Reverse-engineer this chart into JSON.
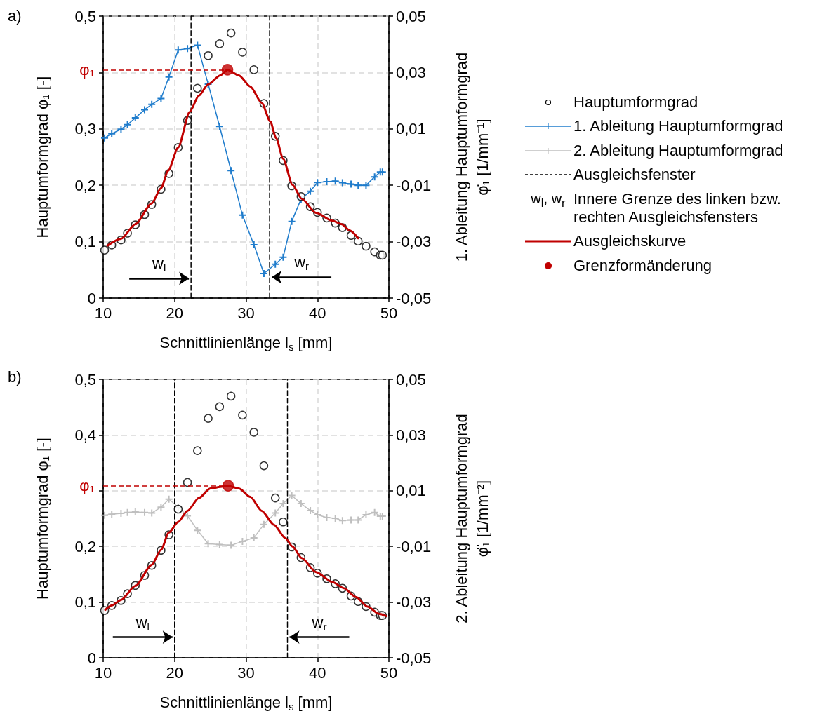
{
  "chart_data": [
    {
      "type": "line",
      "title": "a)",
      "xlabel": "Schnittlinienlänge l$_{s}$ [mm]",
      "ylabel": "Hauptumformgrad φ₁ [-]",
      "y2label": "1. Ableitung Hauptumformgrad\nφ̇₁ [1/mm⁻¹]",
      "x": [
        10.2,
        11.2,
        12.5,
        13.4,
        14.5,
        15.8,
        16.8,
        18.1,
        19.2,
        20.5,
        21.8,
        23.2,
        24.7,
        26.3,
        27.9,
        29.5,
        31.1,
        32.5,
        34.1,
        35.2,
        36.4,
        37.7,
        39.0,
        40.0,
        41.3,
        42.5,
        43.5,
        44.7,
        45.7,
        46.8,
        48.0,
        48.8,
        49.1
      ],
      "series": [
        {
          "name": "Hauptumformgrad",
          "type": "scatter",
          "marker": "circle",
          "color": "#000000",
          "values": [
            0.085,
            0.094,
            0.103,
            0.115,
            0.13,
            0.148,
            0.166,
            0.193,
            0.221,
            0.267,
            0.315,
            0.372,
            0.43,
            0.451,
            0.47,
            0.436,
            0.405,
            0.345,
            0.287,
            0.244,
            0.199,
            0.18,
            0.162,
            0.152,
            0.142,
            0.133,
            0.125,
            0.111,
            0.101,
            0.092,
            0.082,
            0.076,
            0.076
          ]
        },
        {
          "name": "1. Ableitung Hauptumformgrad",
          "axis": "y2",
          "marker": "cross",
          "color": "#1f7ccc",
          "values": [
            0.0068,
            0.0083,
            0.0099,
            0.0115,
            0.0139,
            0.0168,
            0.0187,
            0.0208,
            0.0284,
            0.038,
            0.0385,
            0.0397,
            0.0259,
            0.0109,
            -0.0048,
            -0.0206,
            -0.0311,
            -0.0413,
            -0.038,
            -0.0355,
            -0.0228,
            -0.0149,
            -0.0121,
            -0.009,
            -0.0087,
            -0.0085,
            -0.0091,
            -0.0096,
            -0.01,
            -0.01,
            -0.007,
            -0.0053,
            -0.0053
          ]
        },
        {
          "name": "Ausgleichsfenster",
          "marker": "none",
          "line_style": "dashed",
          "color": "#000000",
          "x": [
            22.3,
            22.3
          ],
          "values": [
            0,
            0.5
          ]
        },
        {
          "marker": "none",
          "line_style": "dashed",
          "color": "#000000",
          "x": [
            33.3,
            33.3
          ],
          "values": [
            0,
            0.5
          ]
        },
        {
          "name": "Ausgleichskurve",
          "marker": "none",
          "color": "#c00000",
          "x": [
            10.6,
            12.5,
            14.5,
            16.8,
            18.1,
            19.1,
            20.5,
            22.1,
            23.4,
            24.7,
            26.4,
            27.4,
            29.0,
            30.6,
            32.2,
            33.4,
            34.2,
            35.2,
            36.5,
            37.8,
            39.8,
            42.1,
            43.4,
            44.5,
            45.7
          ],
          "values": [
            0.093,
            0.105,
            0.131,
            0.168,
            0.195,
            0.226,
            0.267,
            0.33,
            0.359,
            0.379,
            0.395,
            0.405,
            0.395,
            0.375,
            0.346,
            0.313,
            0.284,
            0.247,
            0.201,
            0.176,
            0.151,
            0.137,
            0.131,
            0.12,
            0.106
          ]
        },
        {
          "name": "Grenzformänderung",
          "type": "scatter",
          "marker": "circle",
          "color": "#c00000",
          "x": [
            27.4
          ],
          "values": [
            0.405
          ]
        }
      ],
      "xlim": [
        10,
        50
      ],
      "xticks": [
        10,
        20,
        30,
        40,
        50
      ],
      "ylim": [
        0,
        0.5
      ],
      "yticks": [
        0,
        {
          "value": 0.1,
          "label": "0,1"
        },
        {
          "value": 0.2,
          "label": "0,2"
        },
        {
          "value": 0.3,
          "label": "0,3"
        },
        {
          "value": 0.4,
          "label": null
        },
        {
          "value": 0.5,
          "label": "0,5"
        }
      ],
      "y2lim": [
        -0.05,
        0.05
      ],
      "y2ticks": [
        {
          "value": -0.05,
          "label": "-0,05"
        },
        {
          "value": -0.03,
          "label": "-0,03"
        },
        {
          "value": -0.01,
          "label": "-0,01"
        },
        {
          "value": 0.01,
          "label": "0,01"
        },
        {
          "value": 0.03,
          "label": "0,03"
        },
        {
          "value": 0.05,
          "label": "0,05"
        }
      ],
      "ref_lines": [
        {
          "axis": "y",
          "value": 0.405,
          "label": "φ₁",
          "color": "#c00000",
          "line_style": "dashed"
        }
      ],
      "annotations": [
        {
          "text": "w$_{l}$",
          "x": 22.3,
          "y": 0.035
        },
        {
          "text": "w$_{r}$",
          "x": 33.3,
          "y": 0.037
        },
        "w$_{l}$, w$_{r}$",
        "Innere Grenze des linken bzw. rechten Ausgleichsfensters"
      ],
      "grid": true,
      "legend": "right"
    },
    {
      "type": "line",
      "title": "b)",
      "xlabel": "Schnittlinienlänge l$_{s}$ [mm]",
      "ylabel": "Hauptumformgrad φ₁ [-]",
      "y2label": "2. Ableitung Hauptumformgrad\nφ̈₁ [1/mm⁻²]",
      "x": [
        10.2,
        11.2,
        12.5,
        13.4,
        14.5,
        15.8,
        16.8,
        18.1,
        19.2,
        20.5,
        21.8,
        23.2,
        24.7,
        26.3,
        27.9,
        29.5,
        31.1,
        32.5,
        34.1,
        35.2,
        36.4,
        37.7,
        39.0,
        40.0,
        41.3,
        42.5,
        43.5,
        44.7,
        45.7,
        46.8,
        48.0,
        48.8,
        49.1
      ],
      "series": [
        {
          "name": "Hauptumformgrad",
          "type": "scatter",
          "marker": "circle",
          "color": "#000000",
          "values": [
            0.085,
            0.094,
            0.103,
            0.115,
            0.13,
            0.148,
            0.166,
            0.193,
            0.221,
            0.267,
            0.315,
            0.372,
            0.43,
            0.451,
            0.47,
            0.436,
            0.405,
            0.345,
            0.287,
            0.244,
            0.199,
            0.18,
            0.162,
            0.152,
            0.142,
            0.133,
            0.125,
            0.111,
            0.101,
            0.092,
            0.082,
            0.076,
            0.076
          ]
        },
        {
          "name": "2. Ableitung Hauptumformgrad",
          "axis": "y2",
          "marker": "cross",
          "color": "#bfbfbf",
          "values": [
            0.0012,
            0.0016,
            0.0019,
            0.0022,
            0.0024,
            0.0022,
            0.002,
            0.0041,
            0.007,
            0.0041,
            0.001,
            -0.0042,
            -0.009,
            -0.0093,
            -0.0096,
            -0.0082,
            -0.0069,
            -0.0021,
            0.002,
            0.0054,
            0.0083,
            0.0054,
            0.0029,
            0.0014,
            0.0004,
            0.0001,
            -0.0007,
            -0.0005,
            -0.0005,
            0.0014,
            0.0022,
            0.0009,
            0.0009
          ]
        },
        {
          "name": "Ausgleichsfenster",
          "marker": "none",
          "line_style": "dashed",
          "color": "#000000",
          "x": [
            20.0,
            20.0
          ],
          "values": [
            0,
            0.5
          ]
        },
        {
          "marker": "none",
          "line_style": "dashed",
          "color": "#000000",
          "x": [
            35.8,
            35.8
          ],
          "values": [
            0,
            0.5
          ]
        },
        {
          "name": "Ausgleichskurve",
          "marker": "none",
          "color": "#c00000",
          "x": [
            10.3,
            11.2,
            12.5,
            14.5,
            16.8,
            18.1,
            19.2,
            20.5,
            21.8,
            23.4,
            25.0,
            26.4,
            27.5,
            29.0,
            30.6,
            32.2,
            33.9,
            35.5,
            36.5,
            37.8,
            39.8,
            42.1,
            43.7,
            45.4,
            47.0,
            48.6,
            49.6
          ],
          "values": [
            0.086,
            0.094,
            0.104,
            0.129,
            0.167,
            0.194,
            0.225,
            0.244,
            0.264,
            0.287,
            0.304,
            0.307,
            0.309,
            0.304,
            0.289,
            0.264,
            0.239,
            0.215,
            0.2,
            0.179,
            0.154,
            0.136,
            0.125,
            0.109,
            0.092,
            0.079,
            0.075
          ]
        },
        {
          "name": "Grenzformänderung",
          "type": "scatter",
          "marker": "circle",
          "color": "#c00000",
          "x": [
            27.5
          ],
          "values": [
            0.309
          ]
        }
      ],
      "xlim": [
        10,
        50
      ],
      "xticks": [
        10,
        20,
        30,
        40,
        50
      ],
      "ylim": [
        0,
        0.5
      ],
      "yticks": [
        0,
        {
          "value": 0.1,
          "label": "0,1"
        },
        {
          "value": 0.2,
          "label": "0,2"
        },
        {
          "value": 0.3,
          "label": null
        },
        {
          "value": 0.4,
          "label": "0,4"
        },
        {
          "value": 0.5,
          "label": "0,5"
        }
      ],
      "y2lim": [
        -0.05,
        0.05
      ],
      "y2ticks": [
        {
          "value": -0.05,
          "label": "-0,05"
        },
        {
          "value": -0.03,
          "label": "-0,03"
        },
        {
          "value": -0.01,
          "label": "-0,01"
        },
        {
          "value": 0.01,
          "label": "0,01"
        },
        {
          "value": 0.03,
          "label": "0,03"
        },
        {
          "value": 0.05,
          "label": "0,05"
        }
      ],
      "ref_lines": [
        {
          "axis": "y",
          "value": 0.309,
          "label": "φ₁",
          "color": "#c00000",
          "line_style": "dashed"
        }
      ],
      "annotations": [
        {
          "text": "w$_{l}$",
          "x": 20.0,
          "y": 0.037
        },
        {
          "text": "w$_{r}$",
          "x": 35.8,
          "y": 0.037
        }
      ],
      "grid": true,
      "legend": "right"
    }
  ]
}
